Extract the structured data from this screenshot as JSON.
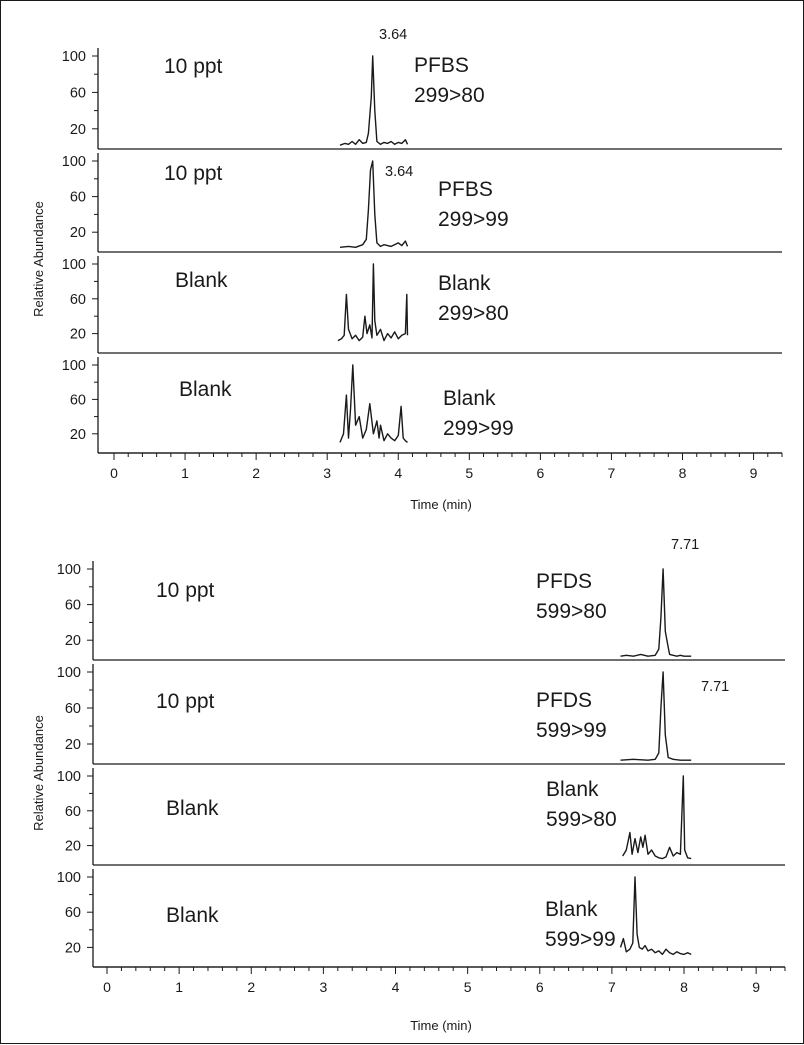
{
  "chart_data": [
    {
      "type": "line",
      "xlabel": "Time (min)",
      "ylabel": "Relative Abundance",
      "xlim": [
        0,
        9.4
      ],
      "x_ticks": [
        "0",
        "1",
        "2",
        "3",
        "4",
        "5",
        "6",
        "7",
        "8",
        "9"
      ],
      "y_ticks": [
        "20",
        "60",
        "100"
      ],
      "panels": [
        {
          "left_label": "10 ppt",
          "compound": "PFBS",
          "transition": "299>80",
          "peak_label": "3.64",
          "x": [
            3.18,
            3.25,
            3.3,
            3.35,
            3.4,
            3.45,
            3.5,
            3.55,
            3.58,
            3.62,
            3.64,
            3.67,
            3.7,
            3.75,
            3.8,
            3.85,
            3.9,
            3.95,
            4.0,
            4.05,
            4.1,
            4.13
          ],
          "y": [
            2,
            4,
            3,
            6,
            3,
            8,
            4,
            5,
            15,
            55,
            100,
            40,
            6,
            3,
            5,
            4,
            6,
            3,
            5,
            4,
            8,
            3
          ]
        },
        {
          "left_label": "10 ppt",
          "compound": "PFBS",
          "transition": "299>99",
          "peak_label": "3.64",
          "x": [
            3.18,
            3.3,
            3.4,
            3.5,
            3.55,
            3.58,
            3.61,
            3.64,
            3.67,
            3.7,
            3.75,
            3.8,
            3.9,
            4.0,
            4.05,
            4.1,
            4.13
          ],
          "y": [
            3,
            4,
            3,
            6,
            12,
            45,
            90,
            100,
            40,
            8,
            4,
            6,
            4,
            8,
            5,
            10,
            4
          ]
        },
        {
          "left_label": "Blank",
          "compound": "Blank",
          "transition": "299>80",
          "x": [
            3.15,
            3.2,
            3.24,
            3.27,
            3.3,
            3.35,
            3.4,
            3.45,
            3.5,
            3.53,
            3.56,
            3.6,
            3.63,
            3.65,
            3.67,
            3.7,
            3.75,
            3.8,
            3.85,
            3.9,
            3.95,
            4.0,
            4.05,
            4.1,
            4.12,
            4.13
          ],
          "y": [
            12,
            14,
            18,
            65,
            25,
            14,
            18,
            12,
            16,
            40,
            20,
            30,
            15,
            100,
            35,
            18,
            25,
            12,
            20,
            15,
            22,
            14,
            18,
            20,
            65,
            18
          ]
        },
        {
          "left_label": "Blank",
          "compound": "Blank",
          "transition": "299>99",
          "x": [
            3.18,
            3.23,
            3.27,
            3.3,
            3.33,
            3.36,
            3.4,
            3.45,
            3.5,
            3.55,
            3.6,
            3.65,
            3.7,
            3.73,
            3.75,
            3.8,
            3.85,
            3.9,
            3.95,
            4.0,
            4.04,
            4.07,
            4.1,
            4.13
          ],
          "y": [
            10,
            20,
            65,
            15,
            50,
            100,
            30,
            40,
            15,
            25,
            55,
            20,
            35,
            15,
            30,
            12,
            20,
            15,
            12,
            18,
            52,
            15,
            12,
            10
          ]
        }
      ]
    },
    {
      "type": "line",
      "xlabel": "Time (min)",
      "ylabel": "Relative Abundance",
      "xlim": [
        0,
        9.4
      ],
      "x_ticks": [
        "0",
        "1",
        "2",
        "3",
        "4",
        "5",
        "6",
        "7",
        "8",
        "9"
      ],
      "y_ticks": [
        "20",
        "60",
        "100"
      ],
      "panels": [
        {
          "left_label": "10 ppt",
          "compound": "PFDS",
          "transition": "599>80",
          "peak_label": "7.71",
          "x": [
            7.12,
            7.2,
            7.3,
            7.4,
            7.5,
            7.6,
            7.65,
            7.68,
            7.71,
            7.74,
            7.78,
            7.8,
            7.85,
            7.9,
            7.95,
            8.0,
            8.1
          ],
          "y": [
            2,
            3,
            2,
            4,
            2,
            3,
            10,
            45,
            100,
            30,
            12,
            4,
            3,
            2,
            3,
            2,
            2
          ]
        },
        {
          "left_label": "10 ppt",
          "compound": "PFDS",
          "transition": "599>99",
          "peak_label": "7.71",
          "x": [
            7.12,
            7.3,
            7.5,
            7.6,
            7.65,
            7.68,
            7.71,
            7.74,
            7.78,
            7.85,
            7.95,
            8.1
          ],
          "y": [
            2,
            3,
            2,
            3,
            10,
            60,
            100,
            30,
            5,
            3,
            2,
            2
          ]
        },
        {
          "left_label": "Blank",
          "compound": "Blank",
          "transition": "599>80",
          "x": [
            7.15,
            7.2,
            7.25,
            7.28,
            7.32,
            7.36,
            7.4,
            7.43,
            7.46,
            7.5,
            7.55,
            7.6,
            7.65,
            7.7,
            7.75,
            7.8,
            7.85,
            7.9,
            7.95,
            7.99,
            8.01,
            8.05,
            8.1
          ],
          "y": [
            8,
            15,
            35,
            10,
            28,
            12,
            30,
            18,
            32,
            10,
            15,
            8,
            6,
            5,
            7,
            18,
            8,
            12,
            10,
            100,
            15,
            6,
            5
          ]
        },
        {
          "left_label": "Blank",
          "compound": "Blank",
          "transition": "599>99",
          "x": [
            7.12,
            7.16,
            7.2,
            7.25,
            7.29,
            7.32,
            7.35,
            7.38,
            7.42,
            7.46,
            7.5,
            7.55,
            7.6,
            7.65,
            7.7,
            7.75,
            7.8,
            7.85,
            7.9,
            7.95,
            8.0,
            8.05,
            8.1
          ],
          "y": [
            20,
            30,
            15,
            18,
            25,
            100,
            35,
            20,
            18,
            22,
            16,
            18,
            14,
            16,
            12,
            18,
            14,
            12,
            15,
            13,
            12,
            14,
            12
          ]
        }
      ]
    }
  ]
}
